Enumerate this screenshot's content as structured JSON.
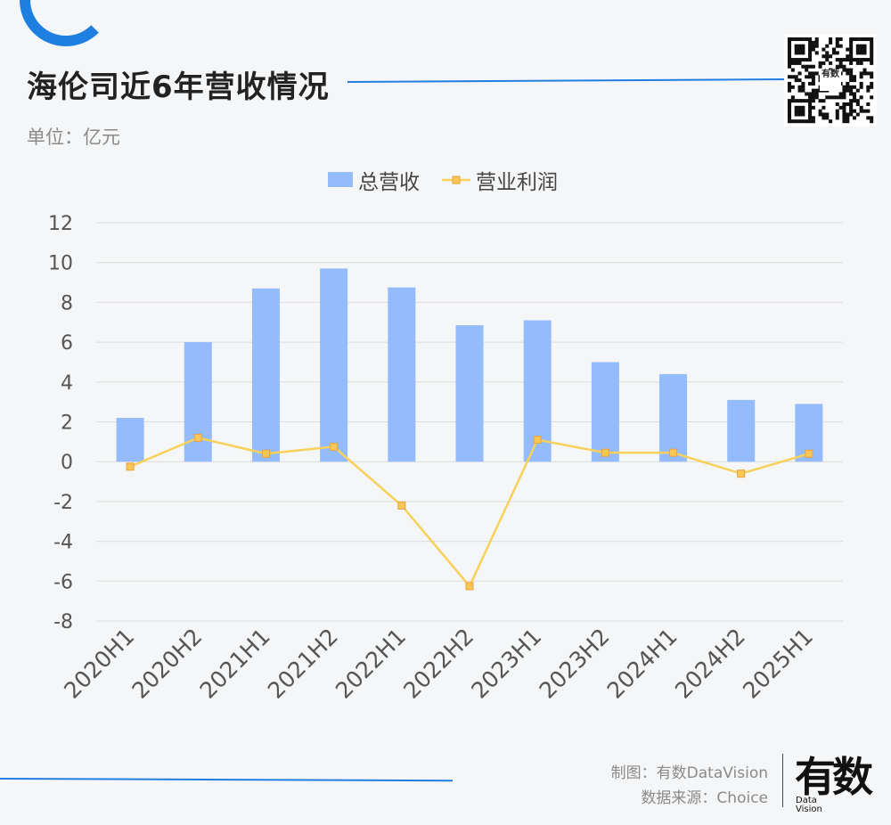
{
  "header": {
    "title": "海伦司近6年营收情况",
    "unit": "单位：亿元"
  },
  "qr": {
    "center_text": "有数"
  },
  "footer": {
    "credit_chart": "制图：有数DataVision",
    "credit_source": "数据来源：Choice",
    "logo_text": "有数",
    "logo_sub_1": "Data",
    "logo_sub_2": "Vision"
  },
  "colors": {
    "bar": "#94bbfb",
    "line": "#f7d15a",
    "marker_fill": "#f9c757",
    "marker_stroke": "#e8a23a",
    "grid": "#dcdcdc",
    "accent": "#1f7fe0"
  },
  "chart_data": {
    "type": "bar",
    "title": "",
    "xlabel": "",
    "ylabel": "",
    "categories": [
      "2020H1",
      "2020H2",
      "2021H1",
      "2021H2",
      "2022H1",
      "2022H2",
      "2023H1",
      "2023H2",
      "2024H1",
      "2024H2",
      "2025H1"
    ],
    "series": [
      {
        "name": "总营收",
        "type": "bar",
        "values": [
          2.2,
          6.0,
          8.7,
          9.7,
          8.75,
          6.85,
          7.1,
          5.0,
          4.4,
          3.1,
          2.9
        ]
      },
      {
        "name": "营业利润",
        "type": "line",
        "values": [
          -0.25,
          1.2,
          0.4,
          0.75,
          -2.2,
          -6.25,
          1.1,
          0.45,
          0.45,
          -0.6,
          0.4
        ]
      }
    ],
    "ylim": [
      -8,
      12
    ],
    "yticks": [
      12,
      10,
      8,
      6,
      4,
      2,
      0,
      -2,
      -4,
      -6,
      -8
    ],
    "grid": true,
    "legend": "top-center"
  }
}
